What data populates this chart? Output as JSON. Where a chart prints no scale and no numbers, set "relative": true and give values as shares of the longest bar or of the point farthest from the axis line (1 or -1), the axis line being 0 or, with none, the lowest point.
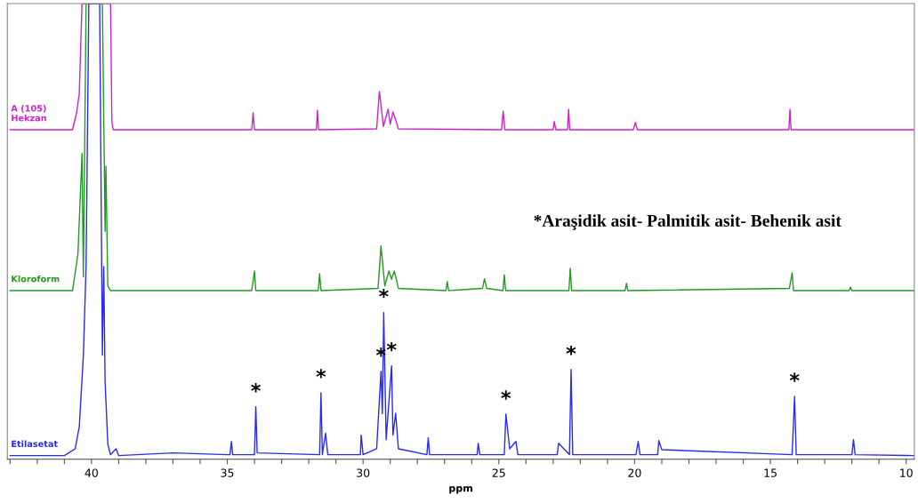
{
  "chart_data": {
    "type": "line",
    "relative": true,
    "xlabel": "ppm",
    "xlim": [
      43.1,
      9.7
    ],
    "marker": "none",
    "line_style": "solid",
    "grid": false,
    "legend": false,
    "xticks": [
      {
        "value": 43,
        "label": null
      },
      {
        "value": 42,
        "label": null
      },
      {
        "value": 41,
        "label": null
      },
      40,
      {
        "value": 39,
        "label": null
      },
      {
        "value": 38,
        "label": null
      },
      {
        "value": 37,
        "label": null
      },
      {
        "value": 36,
        "label": null
      },
      35,
      {
        "value": 34,
        "label": null
      },
      {
        "value": 33,
        "label": null
      },
      {
        "value": 32,
        "label": null
      },
      {
        "value": 31,
        "label": null
      },
      30,
      {
        "value": 29,
        "label": null
      },
      {
        "value": 28,
        "label": null
      },
      {
        "value": 27,
        "label": null
      },
      {
        "value": 26,
        "label": null
      },
      25,
      {
        "value": 24,
        "label": null
      },
      {
        "value": 23,
        "label": null
      },
      {
        "value": 22,
        "label": null
      },
      {
        "value": 21,
        "label": null
      },
      20,
      {
        "value": 19,
        "label": null
      },
      {
        "value": 18,
        "label": null
      },
      {
        "value": 17,
        "label": null
      },
      {
        "value": 16,
        "label": null
      },
      15,
      {
        "value": 14,
        "label": null
      },
      {
        "value": 13,
        "label": null
      },
      {
        "value": 12,
        "label": null
      },
      {
        "value": 11,
        "label": null
      },
      10
    ],
    "series": [
      {
        "name": "A (105)\nHekzan",
        "color": "#cc22cc",
        "x": [
          43.0,
          40.7,
          40.55,
          40.45,
          40.35,
          39.3,
          39.25,
          39.2,
          34.1,
          34.05,
          34.0,
          31.72,
          31.68,
          31.64,
          29.5,
          29.4,
          29.25,
          29.08,
          29.0,
          28.9,
          28.8,
          28.7,
          24.9,
          24.84,
          24.78,
          23.0,
          22.96,
          22.9,
          22.47,
          22.43,
          22.39,
          20.05,
          19.97,
          19.9,
          14.32,
          14.28,
          14.24,
          9.7
        ],
        "values": [
          0.723,
          0.723,
          0.76,
          0.803,
          1,
          1,
          0.74,
          0.723,
          0.723,
          0.76,
          0.723,
          0.723,
          0.766,
          0.723,
          0.725,
          0.807,
          0.73,
          0.768,
          0.735,
          0.762,
          0.745,
          0.725,
          0.723,
          0.764,
          0.723,
          0.723,
          0.741,
          0.723,
          0.723,
          0.768,
          0.723,
          0.723,
          0.739,
          0.723,
          0.723,
          0.768,
          0.723,
          0.723
        ]
      },
      {
        "name": "Kloroform",
        "color": "#229922",
        "x": [
          43.0,
          40.7,
          40.5,
          40.35,
          40.3,
          40.2,
          39.6,
          39.5,
          39.47,
          39.4,
          39.3,
          34.1,
          34.0,
          33.95,
          31.65,
          31.6,
          31.55,
          29.45,
          29.34,
          29.2,
          29.05,
          28.95,
          28.85,
          28.7,
          26.95,
          26.9,
          26.85,
          25.6,
          25.53,
          25.45,
          24.85,
          24.8,
          24.75,
          22.42,
          22.37,
          22.32,
          20.35,
          20.3,
          20.25,
          14.3,
          14.2,
          14.15,
          12.1,
          12.05,
          12.0,
          9.7
        ],
        "values": [
          0.37,
          0.37,
          0.45,
          0.671,
          0.4,
          1,
          1,
          0.5,
          0.643,
          0.38,
          0.37,
          0.37,
          0.413,
          0.37,
          0.37,
          0.407,
          0.37,
          0.375,
          0.468,
          0.38,
          0.413,
          0.395,
          0.413,
          0.375,
          0.37,
          0.39,
          0.37,
          0.375,
          0.396,
          0.375,
          0.37,
          0.405,
          0.37,
          0.37,
          0.419,
          0.37,
          0.37,
          0.386,
          0.37,
          0.375,
          0.409,
          0.37,
          0.37,
          0.378,
          0.37,
          0.37
        ]
      },
      {
        "name": "Etilasetat",
        "color": "#2a2aee",
        "x": [
          43.0,
          41.0,
          40.6,
          40.45,
          40.3,
          40.2,
          40.1,
          39.7,
          39.6,
          39.55,
          39.5,
          39.4,
          39.3,
          39.1,
          39.0,
          37.0,
          35.0,
          34.9,
          34.85,
          34.8,
          34.0,
          33.95,
          33.9,
          31.6,
          31.55,
          31.5,
          31.38,
          31.3,
          30.1,
          30.07,
          30.0,
          29.5,
          29.34,
          29.29,
          29.24,
          29.15,
          28.95,
          28.9,
          28.8,
          28.7,
          27.65,
          27.6,
          27.55,
          25.8,
          25.76,
          25.7,
          24.8,
          24.74,
          24.6,
          24.37,
          24.3,
          22.85,
          22.8,
          22.4,
          22.34,
          22.28,
          19.95,
          19.87,
          19.8,
          19.15,
          19.11,
          19.0,
          14.2,
          14.11,
          14.05,
          12.0,
          11.94,
          11.88,
          9.7
        ],
        "values": [
          0.008,
          0.008,
          0.023,
          0.072,
          0.228,
          0.423,
          1,
          1,
          0.228,
          0.423,
          0.17,
          0.033,
          0.01,
          0.023,
          0.008,
          0.014,
          0.01,
          0.01,
          0.039,
          0.01,
          0.01,
          0.115,
          0.014,
          0.01,
          0.146,
          0.01,
          0.057,
          0.01,
          0.01,
          0.053,
          0.01,
          0.023,
          0.193,
          0.1,
          0.322,
          0.043,
          0.205,
          0.053,
          0.101,
          0.023,
          0.01,
          0.047,
          0.01,
          0.01,
          0.035,
          0.01,
          0.01,
          0.099,
          0.023,
          0.039,
          0.01,
          0.01,
          0.035,
          0.01,
          0.197,
          0.01,
          0.01,
          0.039,
          0.01,
          0.01,
          0.041,
          0.021,
          0.01,
          0.138,
          0.01,
          0.01,
          0.043,
          0.01,
          0.008
        ]
      }
    ],
    "annotations": [
      "*Araşidik asit- Palmitik asit- Behenik asit",
      {
        "text": "*",
        "x": 33.95,
        "y": 0.115
      },
      {
        "text": "*",
        "x": 31.55,
        "y": 0.146
      },
      {
        "text": "*",
        "x": 29.34,
        "y": 0.193
      },
      {
        "text": "*",
        "x": 29.24,
        "y": 0.322
      },
      {
        "text": "*",
        "x": 28.95,
        "y": 0.205
      },
      {
        "text": "*",
        "x": 24.74,
        "y": 0.099
      },
      {
        "text": "*",
        "x": 22.34,
        "y": 0.197
      },
      {
        "text": "*",
        "x": 14.11,
        "y": 0.138
      }
    ]
  }
}
